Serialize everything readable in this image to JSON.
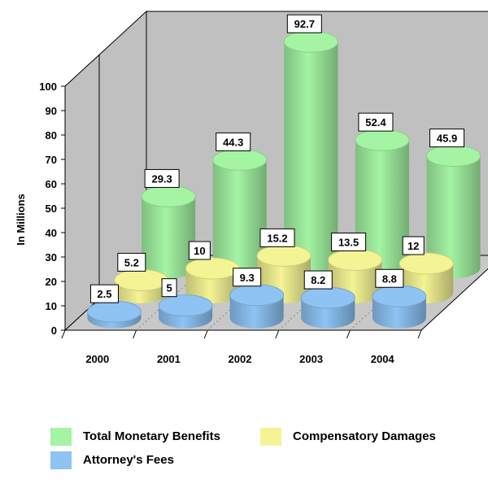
{
  "chart_data": {
    "type": "bar",
    "style": "3d-cylinder",
    "ylabel": "In Millions",
    "ylim": [
      0,
      100
    ],
    "yticks": [
      0,
      10,
      20,
      30,
      40,
      50,
      60,
      70,
      80,
      90,
      100
    ],
    "categories": [
      "2000",
      "2001",
      "2002",
      "2003",
      "2004"
    ],
    "series": [
      {
        "name": "Attorney's Fees",
        "color": "#8ec3f4",
        "values": [
          2.5,
          5,
          9.3,
          8.2,
          8.8
        ]
      },
      {
        "name": "Compensatory Damages",
        "color": "#f4f494",
        "values": [
          5.2,
          10,
          15.2,
          13.5,
          12
        ]
      },
      {
        "name": "Total Monetary Benefits",
        "color": "#a4f4a4",
        "values": [
          29.3,
          44.3,
          92.7,
          52.4,
          45.9
        ]
      }
    ],
    "legend": {
      "position": "bottom",
      "items": [
        "Total Monetary Benefits",
        "Compensatory Damages",
        "Attorney's Fees"
      ]
    },
    "grid": false,
    "wall_color": "#c0c0c0"
  }
}
